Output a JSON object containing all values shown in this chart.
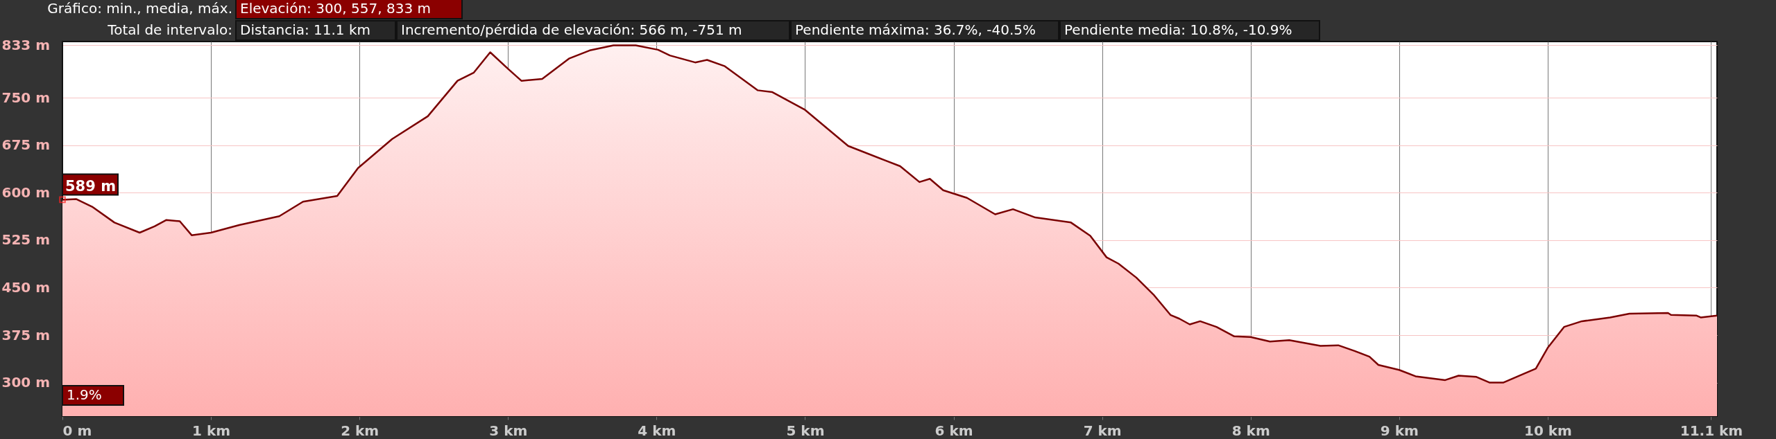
{
  "chart_data": {
    "type": "area",
    "series": [
      {
        "color": "#7a0000",
        "x": [
          0,
          0.094,
          0.2,
          0.35,
          0.52,
          0.62,
          0.7,
          0.79,
          0.87,
          1.0,
          1.19,
          1.46,
          1.62,
          1.85,
          1.99,
          2.22,
          2.46,
          2.66,
          2.77,
          2.88,
          3.0,
          3.09,
          3.23,
          3.41,
          3.55,
          3.71,
          3.86,
          4.01,
          4.09,
          4.26,
          4.34,
          4.46,
          4.68,
          4.78,
          5.0,
          5.29,
          5.53,
          5.64,
          5.77,
          5.84,
          5.93,
          6.09,
          6.28,
          6.4,
          6.55,
          6.79,
          6.92,
          7.03,
          7.11,
          7.23,
          7.35,
          7.46,
          7.52,
          7.59,
          7.66,
          7.77,
          7.89,
          8.0,
          8.13,
          8.26,
          8.47,
          8.59,
          8.7,
          8.8,
          8.86,
          9.0,
          9.11,
          9.31,
          9.4,
          9.52,
          9.61,
          9.7,
          9.83,
          9.92,
          10.0,
          10.11,
          10.23,
          10.42,
          10.55,
          10.81,
          10.83,
          11.0,
          11.03,
          11.14
        ],
        "values": [
          589,
          590,
          578,
          553,
          537,
          547,
          557,
          555,
          533,
          537,
          549,
          563,
          586,
          595,
          639,
          685,
          721,
          777,
          790,
          822,
          796,
          777,
          780,
          812,
          825,
          833,
          833,
          826,
          817,
          806,
          810,
          800,
          762,
          759,
          731,
          674,
          652,
          642,
          617,
          622,
          604,
          592,
          566,
          574,
          561,
          553,
          532,
          498,
          488,
          466,
          438,
          407,
          401,
          392,
          397,
          388,
          373,
          372,
          365,
          367,
          358,
          359,
          350,
          341,
          328,
          320,
          310,
          304,
          311,
          309,
          300,
          300,
          313,
          322,
          355,
          388,
          397,
          403,
          409,
          410,
          407,
          406,
          403,
          406
        ]
      }
    ],
    "xlim": [
      0,
      11.14
    ],
    "ylim": [
      247,
      839
    ],
    "xticks": [
      {
        "value": 0,
        "label": "0 m"
      },
      {
        "value": 1,
        "label": "1 km"
      },
      {
        "value": 2,
        "label": "2 km"
      },
      {
        "value": 3,
        "label": "3 km"
      },
      {
        "value": 4,
        "label": "4 km"
      },
      {
        "value": 5,
        "label": "5 km"
      },
      {
        "value": 6,
        "label": "6 km"
      },
      {
        "value": 7,
        "label": "7 km"
      },
      {
        "value": 8,
        "label": "8 km"
      },
      {
        "value": 9,
        "label": "9 km"
      },
      {
        "value": 10,
        "label": "10 km"
      },
      {
        "value": 11.1,
        "label": "11.1 km"
      }
    ],
    "yticks": [
      {
        "value": 300,
        "label": "300 m"
      },
      {
        "value": 375,
        "label": "375 m"
      },
      {
        "value": 450,
        "label": "450 m"
      },
      {
        "value": 525,
        "label": "525 m"
      },
      {
        "value": 600,
        "label": "600 m"
      },
      {
        "value": 675,
        "label": "675 m"
      },
      {
        "value": 750,
        "label": "750 m"
      },
      {
        "value": 833,
        "label": "833 m"
      }
    ],
    "grid": true,
    "annotations": [
      "Gráfico: min., media, máx.",
      "Elevación: 300, 557, 833 m",
      "Total de intervalo:",
      "Distancia: 11.1 km",
      "Incremento/pérdida de elevación: 566 m, -751 m",
      "Pendiente máxima: 36.7%, -40.5%",
      "Pendiente media: 10.8%, -10.9%",
      {
        "text": "589 m",
        "x": 0,
        "y": 589
      },
      "1.9%"
    ]
  }
}
